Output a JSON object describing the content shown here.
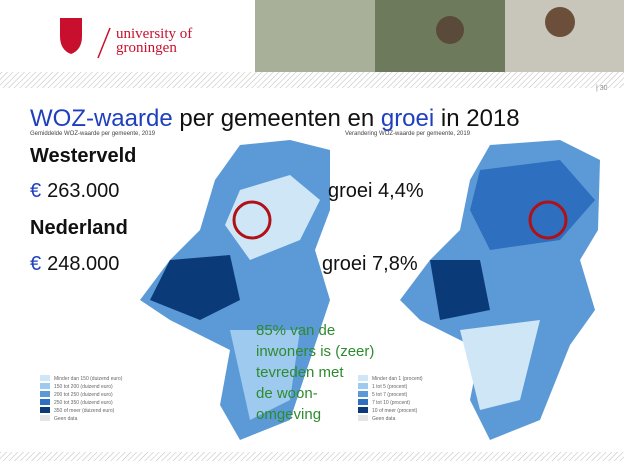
{
  "header": {
    "logo_text": [
      "university of",
      "groningen"
    ],
    "page_number": "| 30"
  },
  "title": {
    "segments": [
      {
        "text": "WOZ-waarde",
        "color": "#1f3fbf"
      },
      {
        "text": " per gemeenten en ",
        "color": "#111111"
      },
      {
        "text": "groei",
        "color": "#1f3fbf"
      },
      {
        "text": " in 2018",
        "color": "#111111"
      }
    ]
  },
  "facts": [
    {
      "place": "Westerveld",
      "currency": "€",
      "value": "263.000",
      "growth": "groei 4,4%"
    },
    {
      "place": "Nederland",
      "currency": "€",
      "value": "248.000",
      "growth": "groei 7,8%"
    }
  ],
  "note": [
    "85% van de",
    "inwoners is (zeer)",
    "tevreden met",
    "de woon-",
    "omgeving"
  ],
  "maps": [
    {
      "caption": "Gemiddelde WOZ-waarde per gemeente, 2019",
      "legend": [
        "Minder dan 150 (duizend euro)",
        "150 tot 200 (duizend euro)",
        "200 tot 250 (duizend euro)",
        "250 tot 350 (duizend euro)",
        "350 of meer (duizend euro)",
        "Geen data"
      ]
    },
    {
      "caption": "Verandering WOZ-waarde per gemeente, 2019",
      "legend": [
        "Minder dan 1 (procent)",
        "1 tot 5 (procent)",
        "5 tot 7 (procent)",
        "7 tot 10 (procent)",
        "10 of meer (procent)",
        "Geen data"
      ]
    }
  ]
}
